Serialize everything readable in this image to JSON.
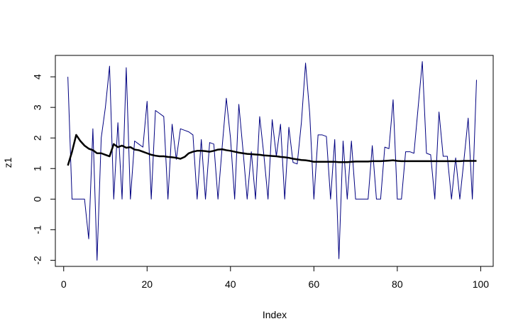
{
  "chart_data": {
    "type": "line",
    "title": "",
    "xlabel": "Index",
    "ylabel": "z1",
    "xlim": [
      -2,
      103
    ],
    "ylim": [
      -2.2,
      4.7
    ],
    "x_ticks": [
      0,
      20,
      40,
      60,
      80,
      100
    ],
    "y_ticks": [
      -2,
      -1,
      0,
      1,
      2,
      3,
      4
    ],
    "grid": false,
    "series": [
      {
        "color": "#000080",
        "line_width": 1,
        "x": [
          1,
          2,
          3,
          4,
          5,
          6,
          7,
          8,
          9,
          10,
          11,
          12,
          13,
          14,
          15,
          16,
          17,
          18,
          19,
          20,
          21,
          22,
          23,
          24,
          25,
          26,
          27,
          28,
          29,
          30,
          31,
          32,
          33,
          34,
          35,
          36,
          37,
          38,
          39,
          40,
          41,
          42,
          43,
          44,
          45,
          46,
          47,
          48,
          49,
          50,
          51,
          52,
          53,
          54,
          55,
          56,
          57,
          58,
          59,
          60,
          61,
          62,
          63,
          64,
          65,
          66,
          67,
          68,
          69,
          70,
          71,
          72,
          73,
          74,
          75,
          76,
          77,
          78,
          79,
          80,
          81,
          82,
          83,
          84,
          85,
          86,
          87,
          88,
          89,
          90,
          91,
          92,
          93,
          94,
          95,
          96,
          97,
          98,
          99
        ],
        "values": [
          4.0,
          0.0,
          0.0,
          0.0,
          0.0,
          -1.3,
          2.3,
          -2.0,
          2.0,
          3.0,
          4.35,
          0.0,
          2.5,
          0.0,
          4.3,
          0.0,
          1.9,
          1.8,
          1.7,
          3.2,
          0.0,
          2.9,
          2.8,
          2.7,
          0.0,
          2.45,
          1.3,
          2.3,
          2.25,
          2.2,
          2.1,
          0.0,
          1.95,
          0.0,
          1.85,
          1.8,
          0.0,
          1.7,
          3.3,
          2.0,
          0.0,
          3.1,
          1.6,
          0.0,
          1.55,
          0.0,
          2.7,
          1.45,
          0.0,
          2.6,
          1.4,
          2.45,
          0.0,
          2.35,
          1.2,
          1.15,
          2.5,
          4.45,
          2.8,
          0.0,
          2.1,
          2.1,
          2.05,
          0.0,
          1.95,
          -1.95,
          1.9,
          0.0,
          1.9,
          0.0,
          0.0,
          0.0,
          0.0,
          1.75,
          0.0,
          0.0,
          1.7,
          1.65,
          3.25,
          0.0,
          0.0,
          1.55,
          1.55,
          1.5,
          3.0,
          4.5,
          1.5,
          1.45,
          0.0,
          2.85,
          1.4,
          1.4,
          0.0,
          1.35,
          0.0,
          1.3,
          2.65,
          0.0,
          3.9
        ]
      },
      {
        "color": "#000000",
        "line_width": 2.5,
        "x": [
          1,
          2,
          3,
          4,
          5,
          6,
          7,
          8,
          9,
          10,
          11,
          12,
          13,
          14,
          15,
          16,
          17,
          18,
          19,
          20,
          21,
          22,
          23,
          24,
          25,
          26,
          27,
          28,
          29,
          30,
          31,
          32,
          33,
          34,
          35,
          36,
          37,
          38,
          39,
          40,
          41,
          42,
          43,
          44,
          45,
          46,
          47,
          48,
          49,
          50,
          51,
          52,
          53,
          54,
          55,
          56,
          57,
          58,
          59,
          60,
          61,
          62,
          63,
          64,
          65,
          66,
          67,
          68,
          69,
          70,
          71,
          72,
          73,
          74,
          75,
          76,
          77,
          78,
          79,
          80,
          81,
          82,
          83,
          84,
          85,
          86,
          87,
          88,
          89,
          90,
          91,
          92,
          93,
          94,
          95,
          96,
          97,
          98,
          99
        ],
        "values": [
          1.1,
          1.55,
          2.1,
          1.9,
          1.75,
          1.65,
          1.6,
          1.5,
          1.5,
          1.45,
          1.4,
          1.8,
          1.7,
          1.75,
          1.68,
          1.7,
          1.62,
          1.6,
          1.55,
          1.5,
          1.45,
          1.42,
          1.4,
          1.4,
          1.38,
          1.37,
          1.35,
          1.32,
          1.38,
          1.5,
          1.55,
          1.58,
          1.58,
          1.57,
          1.55,
          1.58,
          1.62,
          1.63,
          1.6,
          1.58,
          1.55,
          1.52,
          1.5,
          1.48,
          1.47,
          1.46,
          1.45,
          1.43,
          1.42,
          1.41,
          1.4,
          1.38,
          1.37,
          1.35,
          1.32,
          1.3,
          1.28,
          1.27,
          1.25,
          1.22,
          1.22,
          1.22,
          1.22,
          1.22,
          1.22,
          1.21,
          1.21,
          1.21,
          1.22,
          1.23,
          1.23,
          1.23,
          1.23,
          1.24,
          1.24,
          1.24,
          1.25,
          1.26,
          1.27,
          1.25,
          1.24,
          1.24,
          1.24,
          1.24,
          1.24,
          1.24,
          1.24,
          1.24,
          1.24,
          1.24,
          1.24,
          1.24,
          1.24,
          1.24,
          1.24,
          1.25,
          1.25,
          1.25,
          1.25
        ]
      }
    ]
  }
}
